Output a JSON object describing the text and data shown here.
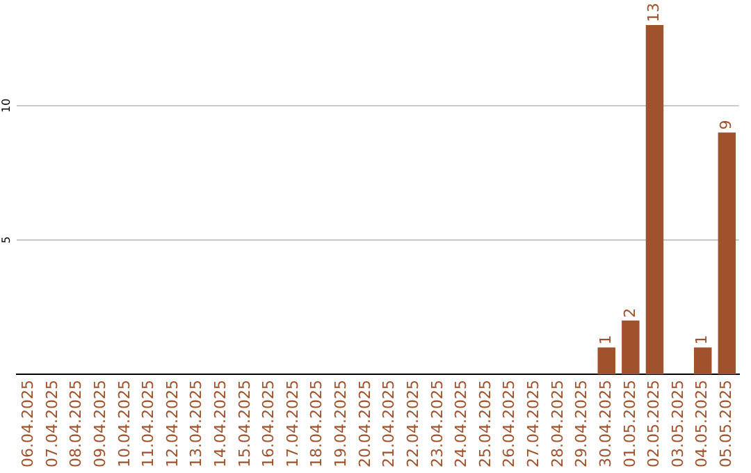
{
  "chart_data": {
    "type": "bar",
    "categories": [
      "06.04.2025",
      "07.04.2025",
      "08.04.2025",
      "09.04.2025",
      "10.04.2025",
      "11.04.2025",
      "12.04.2025",
      "13.04.2025",
      "14.04.2025",
      "15.04.2025",
      "16.04.2025",
      "17.04.2025",
      "18.04.2025",
      "19.04.2025",
      "20.04.2025",
      "21.04.2025",
      "22.04.2025",
      "23.04.2025",
      "24.04.2025",
      "25.04.2025",
      "26.04.2025",
      "27.04.2025",
      "28.04.2025",
      "29.04.2025",
      "30.04.2025",
      "01.05.2025",
      "02.05.2025",
      "03.05.2025",
      "04.05.2025",
      "05.05.2025"
    ],
    "values": [
      0,
      0,
      0,
      0,
      0,
      0,
      0,
      0,
      0,
      0,
      0,
      0,
      0,
      0,
      0,
      0,
      0,
      0,
      0,
      0,
      0,
      0,
      0,
      0,
      1,
      2,
      13,
      0,
      1,
      9
    ],
    "value_labels": [
      null,
      null,
      null,
      null,
      null,
      null,
      null,
      null,
      null,
      null,
      null,
      null,
      null,
      null,
      null,
      null,
      null,
      null,
      null,
      null,
      null,
      null,
      null,
      null,
      "1",
      "2",
      "13",
      null,
      "1",
      "9"
    ],
    "color": "#a0522d",
    "ylim": [
      0,
      13
    ],
    "yticks": [
      5,
      10
    ],
    "grid": "y",
    "legend": false
  }
}
